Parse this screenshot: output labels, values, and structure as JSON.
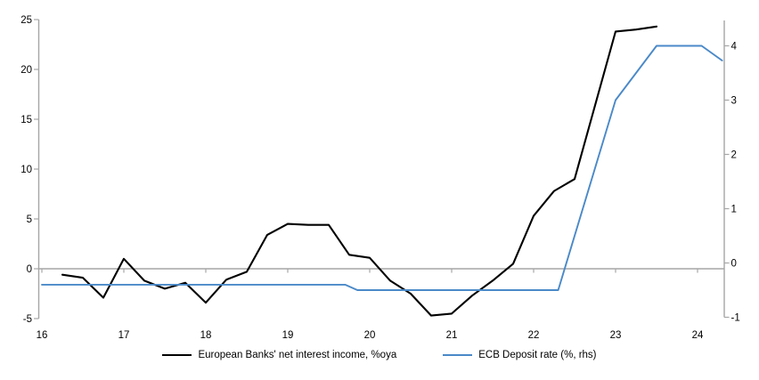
{
  "chart_data": {
    "type": "line",
    "title": "",
    "xlabel": "",
    "ylabel_left": "",
    "ylabel_right": "",
    "x_axis": {
      "ticks": [
        16,
        17,
        18,
        19,
        20,
        21,
        22,
        23,
        24
      ],
      "range": [
        16,
        24.33
      ]
    },
    "y_axis_left": {
      "ticks": [
        -5,
        0,
        5,
        10,
        15,
        20,
        25
      ],
      "range": [
        -5,
        25
      ]
    },
    "y_axis_right": {
      "ticks": [
        -1,
        0,
        1,
        2,
        3,
        4
      ],
      "range": [
        -1,
        4.46
      ]
    },
    "grid": "zero-line-only",
    "zero_line_color": "#a6a6a6",
    "axis_color": "#a6a6a6",
    "legend_position": "bottom-center",
    "series": [
      {
        "name": "European Banks' net interest income, %oya",
        "color": "#000000",
        "axis": "left",
        "points": [
          [
            16.25,
            -0.6
          ],
          [
            16.5,
            -0.9
          ],
          [
            16.75,
            -2.9
          ],
          [
            17.0,
            1.0
          ],
          [
            17.25,
            -1.2
          ],
          [
            17.5,
            -2.0
          ],
          [
            17.75,
            -1.4
          ],
          [
            18.0,
            -3.4
          ],
          [
            18.25,
            -1.1
          ],
          [
            18.5,
            -0.3
          ],
          [
            18.75,
            3.4
          ],
          [
            19.0,
            4.5
          ],
          [
            19.25,
            4.4
          ],
          [
            19.5,
            4.4
          ],
          [
            19.75,
            1.4
          ],
          [
            20.0,
            1.1
          ],
          [
            20.25,
            -1.2
          ],
          [
            20.5,
            -2.5
          ],
          [
            20.75,
            -4.7
          ],
          [
            21.0,
            -4.5
          ],
          [
            21.25,
            -2.7
          ],
          [
            21.5,
            -1.2
          ],
          [
            21.75,
            0.5
          ],
          [
            22.0,
            5.3
          ],
          [
            22.25,
            7.8
          ],
          [
            22.5,
            9.0
          ],
          [
            22.75,
            16.4
          ],
          [
            23.0,
            23.8
          ],
          [
            23.25,
            24.0
          ],
          [
            23.5,
            24.3
          ]
        ]
      },
      {
        "name": "ECB Deposit rate (%, rhs)",
        "color": "#4a89c8",
        "axis": "right",
        "points": [
          [
            16.0,
            -0.4
          ],
          [
            19.7,
            -0.4
          ],
          [
            19.85,
            -0.5
          ],
          [
            22.3,
            -0.5
          ],
          [
            23.0,
            3.0
          ],
          [
            23.5,
            4.0
          ],
          [
            24.05,
            4.0
          ],
          [
            24.3,
            3.73
          ]
        ]
      }
    ]
  }
}
